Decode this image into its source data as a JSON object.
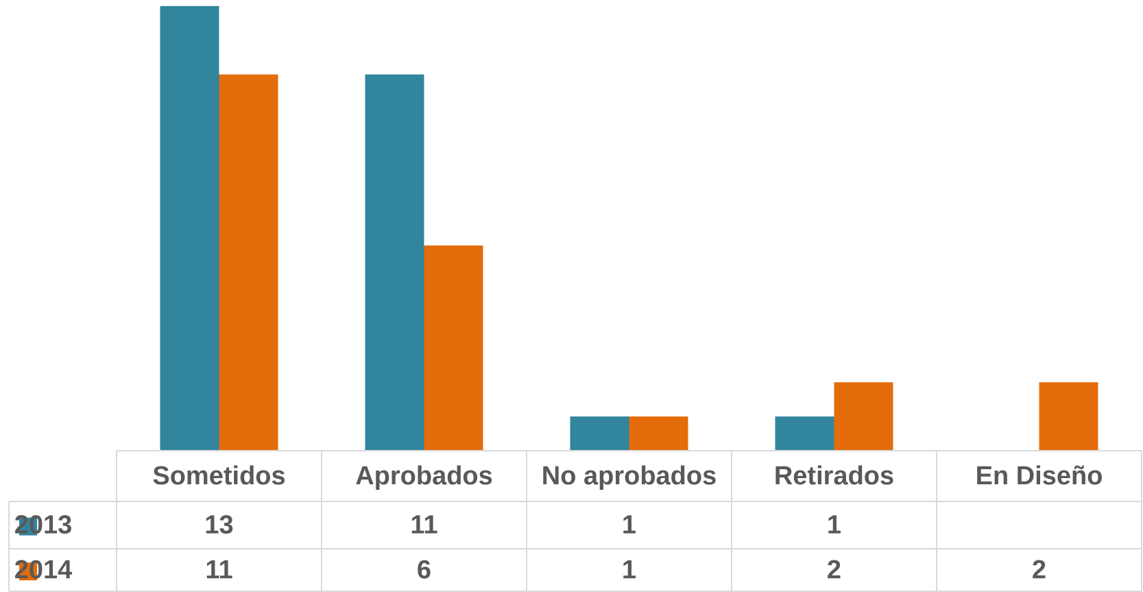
{
  "chart_data": {
    "type": "bar",
    "categories": [
      "Sometidos",
      "Aprobados",
      "No aprobados",
      "Retirados",
      "En Diseño"
    ],
    "series": [
      {
        "name": "2013",
        "color": "#31859c",
        "values": [
          13,
          11,
          1,
          1,
          null
        ]
      },
      {
        "name": "2014",
        "color": "#e46c0a",
        "values": [
          11,
          6,
          1,
          2,
          2
        ]
      }
    ],
    "data_table": true
  }
}
